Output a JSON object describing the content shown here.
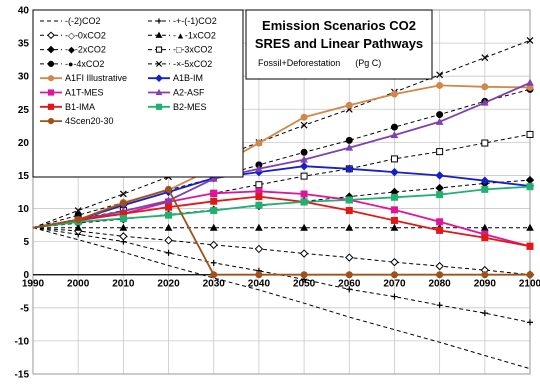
{
  "chart_data": {
    "type": "line",
    "title": "Emission Scenarios CO2",
    "title_line2": "SRES and Linear Pathways",
    "subtitle": "Fossil+Deforestation      (Pg C)",
    "x": [
      1990,
      2000,
      2010,
      2020,
      2030,
      2040,
      2050,
      2060,
      2070,
      2080,
      2090,
      2100
    ],
    "xlim": [
      1990,
      2100
    ],
    "ylim": [
      -15,
      40
    ],
    "yticks": [
      -15,
      -10,
      -5,
      0,
      5,
      10,
      15,
      20,
      25,
      30,
      35,
      40
    ],
    "grid": true,
    "legend_position": "top-left",
    "series": [
      {
        "name": "-(-2)CO2",
        "color": "#000000",
        "dash": "4,3",
        "marker": "none",
        "values": [
          7.1,
          5.3,
          3.4,
          1.4,
          -0.5,
          -2.3,
          -4.3,
          -6.4,
          -8.3,
          -10.2,
          -12.2,
          -14.2
        ]
      },
      {
        "name": "-+-(-1)CO2",
        "color": "#000000",
        "dash": "4,3",
        "marker": "plus",
        "values": [
          7.1,
          6.1,
          5.0,
          3.3,
          1.8,
          0.6,
          -0.7,
          -2.2,
          -3.3,
          -4.6,
          -5.8,
          -7.2
        ]
      },
      {
        "name": "-◇-0xCO2",
        "color": "#000000",
        "dash": "4,3",
        "marker": "diamond",
        "values": [
          7.1,
          6.6,
          5.8,
          5.2,
          4.5,
          3.9,
          3.2,
          2.6,
          1.9,
          1.3,
          0.7,
          0.0
        ]
      },
      {
        "name": "-▲-1xCO2",
        "color": "#000000",
        "dash": "4,3",
        "marker": "triangle",
        "values": [
          7.1,
          7.1,
          7.1,
          7.1,
          7.1,
          7.1,
          7.1,
          7.1,
          7.1,
          7.1,
          7.1,
          7.1
        ]
      },
      {
        "name": "-◆-2xCO2",
        "color": "#000000",
        "dash": "4,3",
        "marker": "diamondfill",
        "values": [
          7.1,
          7.8,
          8.4,
          9.1,
          9.8,
          10.4,
          11.1,
          11.8,
          12.5,
          13.1,
          13.8,
          14.3
        ]
      },
      {
        "name": "-□-3xCO2",
        "color": "#000000",
        "dash": "4,3",
        "marker": "square",
        "values": [
          7.1,
          8.4,
          9.7,
          11.0,
          12.3,
          13.6,
          14.9,
          16.0,
          17.5,
          18.6,
          19.9,
          21.2
        ]
      },
      {
        "name": "-●-4xCO2",
        "color": "#000000",
        "dash": "4,3",
        "marker": "circle",
        "values": [
          7.1,
          9.0,
          10.9,
          12.8,
          14.6,
          16.6,
          18.5,
          20.3,
          22.3,
          24.2,
          26.2,
          28.0
        ]
      },
      {
        "name": "-×-5xCO2",
        "color": "#000000",
        "dash": "4,3",
        "marker": "cross",
        "values": [
          7.1,
          9.7,
          12.2,
          14.8,
          17.4,
          20.0,
          22.6,
          25.0,
          27.6,
          30.2,
          32.8,
          35.4
        ]
      },
      {
        "name": "A1FI Illustrative",
        "color": "#d0884a",
        "dash": "",
        "marker": "circle",
        "values": [
          7.1,
          8.3,
          10.9,
          12.8,
          16.1,
          19.9,
          23.8,
          25.6,
          27.3,
          28.6,
          28.4,
          28.3
        ]
      },
      {
        "name": "A1B-IM",
        "color": "#1520c8",
        "dash": "",
        "marker": "diamondfill",
        "values": [
          7.1,
          8.3,
          10.5,
          12.5,
          14.6,
          15.5,
          16.4,
          16.0,
          15.5,
          15.0,
          14.2,
          13.4
        ]
      },
      {
        "name": "A1T-MES",
        "color": "#e0149a",
        "dash": "",
        "marker": "square",
        "values": [
          7.1,
          8.2,
          9.2,
          11.0,
          12.3,
          12.6,
          12.2,
          11.3,
          9.8,
          8.0,
          6.1,
          4.3
        ]
      },
      {
        "name": "A2-ASF",
        "color": "#8040b0",
        "dash": "",
        "marker": "triangle",
        "values": [
          7.1,
          8.3,
          9.6,
          11.2,
          14.5,
          16.0,
          17.4,
          19.2,
          21.1,
          23.1,
          26.0,
          29.0
        ]
      },
      {
        "name": "B1-IMA",
        "color": "#e01818",
        "dash": "",
        "marker": "square",
        "values": [
          7.1,
          8.3,
          9.2,
          10.2,
          11.1,
          11.8,
          11.0,
          9.7,
          8.2,
          6.7,
          5.6,
          4.3
        ]
      },
      {
        "name": "B2-MES",
        "color": "#20b070",
        "dash": "",
        "marker": "square",
        "values": [
          7.1,
          8.0,
          8.5,
          9.0,
          9.7,
          10.5,
          11.0,
          11.3,
          11.7,
          12.1,
          12.9,
          13.3
        ]
      },
      {
        "name": "4Scen20-30",
        "color": "#a05018",
        "dash": "",
        "marker": "circle",
        "values": [
          7.1,
          8.3,
          10.8,
          12.9,
          0.0,
          0.0,
          0.0,
          0.0,
          0.0,
          0.0,
          0.0,
          0.0
        ]
      }
    ]
  }
}
